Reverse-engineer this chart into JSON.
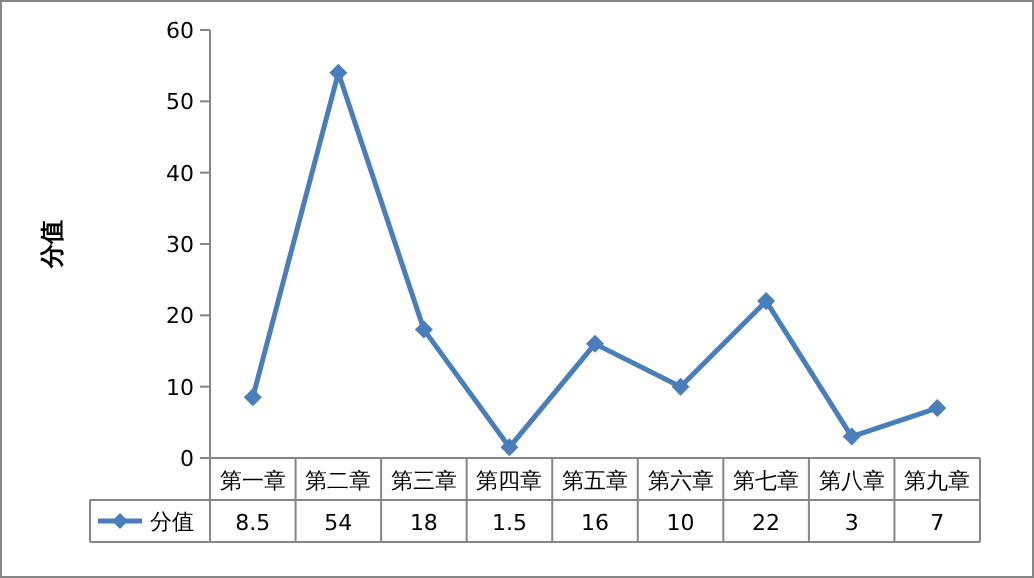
{
  "chart_data": {
    "type": "line",
    "ylabel": "分值",
    "categories": [
      "第一章",
      "第二章",
      "第三章",
      "第四章",
      "第五章",
      "第六章",
      "第七章",
      "第八章",
      "第九章"
    ],
    "series": [
      {
        "name": "分值",
        "color": "#4a7ebb",
        "values": [
          8.5,
          54,
          18,
          1.5,
          16,
          10,
          22,
          3,
          7
        ]
      }
    ],
    "ylim": [
      0,
      60
    ],
    "yticks": [
      0,
      10,
      20,
      30,
      40,
      50,
      60
    ],
    "marker": "diamond",
    "line_style": "solid",
    "data_labels": true,
    "legend": "bottom",
    "grid": false
  }
}
